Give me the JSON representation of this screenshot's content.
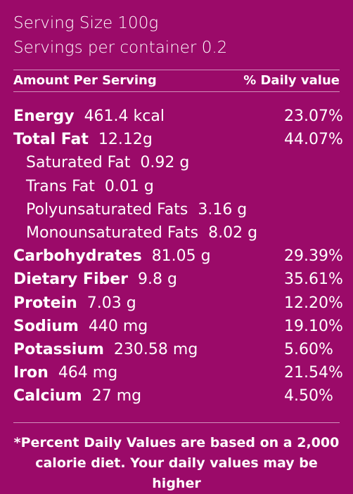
{
  "serving": {
    "size_text": "Serving Size 100g",
    "per_container_text": "Servings per container 0.2"
  },
  "header": {
    "amount_label": "Amount Per Serving",
    "daily_label": "% Daily value"
  },
  "nutrients": [
    {
      "name": "Energy",
      "amount": "461.4 kcal",
      "dv": "23.07%",
      "sub": false
    },
    {
      "name": "Total Fat",
      "amount": "12.12g",
      "dv": "44.07%",
      "sub": false
    },
    {
      "name": "Saturated Fat",
      "amount": "0.92 g",
      "dv": "",
      "sub": true
    },
    {
      "name": "Trans Fat",
      "amount": "0.01 g",
      "dv": "",
      "sub": true
    },
    {
      "name": "Polyunsaturated Fats",
      "amount": "3.16 g",
      "dv": "",
      "sub": true
    },
    {
      "name": "Monounsaturated Fats",
      "amount": "8.02 g",
      "dv": "",
      "sub": true
    },
    {
      "name": "Carbohydrates",
      "amount": "81.05 g",
      "dv": "29.39%",
      "sub": false
    },
    {
      "name": "Dietary Fiber",
      "amount": "9.8 g",
      "dv": "35.61%",
      "sub": false
    },
    {
      "name": "Protein",
      "amount": "7.03 g",
      "dv": "12.20%",
      "sub": false
    },
    {
      "name": "Sodium",
      "amount": "440 mg",
      "dv": "19.10%",
      "sub": false
    },
    {
      "name": "Potassium",
      "amount": "230.58 mg",
      "dv": "5.60%",
      "sub": false
    },
    {
      "name": "Iron",
      "amount": "464 mg",
      "dv": "21.54%",
      "sub": false
    },
    {
      "name": "Calcium",
      "amount": "27 mg",
      "dv": "4.50%",
      "sub": false
    }
  ],
  "footnote": {
    "line1": "*Percent Daily Values are based on a 2,000",
    "line2": "calorie diet. Your daily values may be higher"
  }
}
